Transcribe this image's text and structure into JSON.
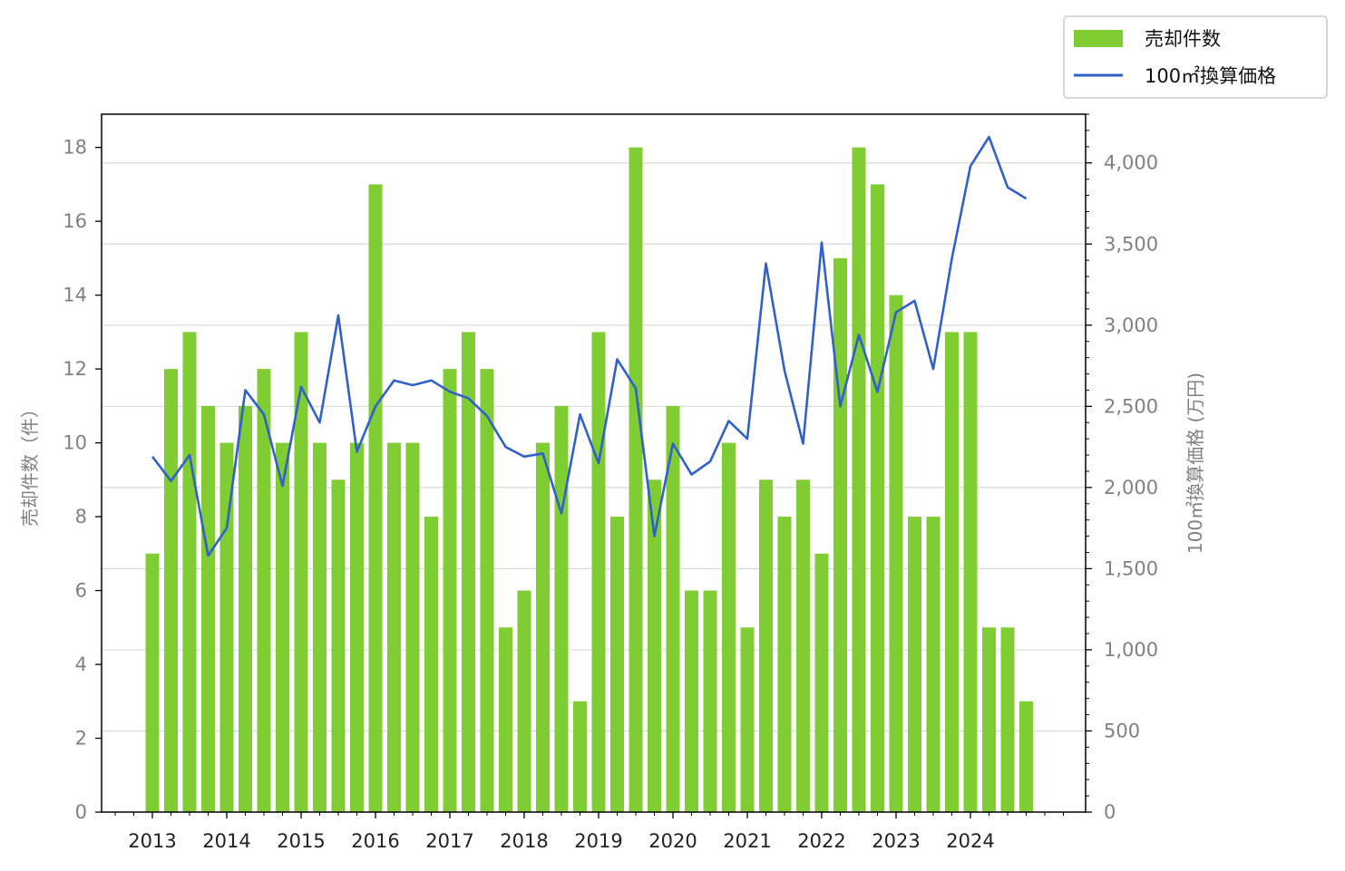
{
  "chart_data": {
    "type": "bar",
    "x_ticks": [
      "2013",
      "2014",
      "2015",
      "2016",
      "2017",
      "2018",
      "2019",
      "2020",
      "2021",
      "2022",
      "2023",
      "2024"
    ],
    "ylabel_left": "売却件数（件）",
    "ylabel_right": "100㎡換算価格 (万円)",
    "ylim_left": [
      0,
      18.9
    ],
    "ylim_right": [
      0,
      4300
    ],
    "yticks_left": [
      "0",
      "2",
      "4",
      "6",
      "8",
      "10",
      "12",
      "14",
      "16",
      "18"
    ],
    "yticks_right": [
      "0",
      "500",
      "1,000",
      "1,500",
      "2,000",
      "2,500",
      "3,000",
      "3,500",
      "4,000"
    ],
    "grid": "horizontal on right axis",
    "legend_position": "top-right",
    "bar_color": "#7FCC33",
    "line_color": "#3060C8",
    "series": [
      {
        "name": "売却件数",
        "type": "bar",
        "axis": "left",
        "x": [
          2013.0,
          2013.25,
          2013.5,
          2013.75,
          2014.0,
          2014.25,
          2014.5,
          2014.75,
          2015.0,
          2015.25,
          2015.5,
          2015.75,
          2016.0,
          2016.25,
          2016.5,
          2016.75,
          2017.0,
          2017.25,
          2017.5,
          2017.75,
          2018.0,
          2018.25,
          2018.5,
          2018.75,
          2019.0,
          2019.25,
          2019.5,
          2019.75,
          2020.0,
          2020.25,
          2020.5,
          2020.75,
          2021.0,
          2021.25,
          2021.5,
          2021.75,
          2022.0,
          2022.25,
          2022.5,
          2022.75,
          2023.0,
          2023.25,
          2023.5,
          2023.75,
          2024.0,
          2024.25,
          2024.5,
          2024.75
        ],
        "values": [
          7,
          12,
          13,
          11,
          10,
          11,
          12,
          10,
          13,
          10,
          9,
          10,
          17,
          10,
          10,
          8,
          12,
          13,
          12,
          5,
          6,
          10,
          11,
          3,
          13,
          8,
          18,
          9,
          11,
          6,
          6,
          10,
          5,
          9,
          8,
          9,
          7,
          15,
          18,
          17,
          14,
          8,
          8,
          13,
          13,
          5,
          5,
          3
        ]
      },
      {
        "name": "100㎡換算価格",
        "type": "line",
        "axis": "right",
        "x": [
          2013.0,
          2013.25,
          2013.5,
          2013.75,
          2014.0,
          2014.25,
          2014.5,
          2014.75,
          2015.0,
          2015.25,
          2015.5,
          2015.75,
          2016.0,
          2016.25,
          2016.5,
          2016.75,
          2017.0,
          2017.25,
          2017.5,
          2017.75,
          2018.0,
          2018.25,
          2018.5,
          2018.75,
          2019.0,
          2019.25,
          2019.5,
          2019.75,
          2020.0,
          2020.25,
          2020.5,
          2020.75,
          2021.0,
          2021.25,
          2021.5,
          2021.75,
          2022.0,
          2022.25,
          2022.5,
          2022.75,
          2023.0,
          2023.25,
          2023.5,
          2023.75,
          2024.0,
          2024.25,
          2024.5,
          2024.75
        ],
        "values": [
          2190,
          2040,
          2200,
          1580,
          1750,
          2600,
          2450,
          2010,
          2620,
          2400,
          3060,
          2220,
          2500,
          2660,
          2630,
          2660,
          2590,
          2550,
          2440,
          2250,
          2190,
          2210,
          1840,
          2450,
          2150,
          2790,
          2610,
          1700,
          2270,
          2080,
          2160,
          2410,
          2300,
          3380,
          2720,
          2270,
          3510,
          2500,
          2940,
          2590,
          3080,
          3150,
          2730,
          3410,
          3980,
          4160,
          3850,
          3780
        ]
      }
    ]
  }
}
